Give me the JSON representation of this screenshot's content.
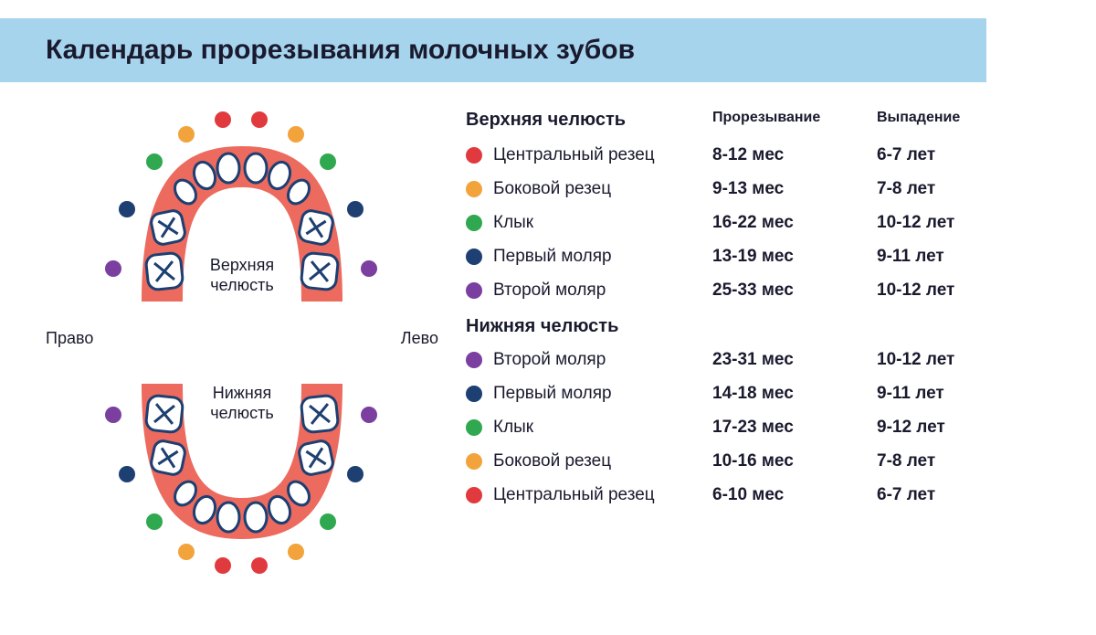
{
  "title": "Календарь прорезывания молочных зубов",
  "headers": {
    "eruption": "Прорезывание",
    "falling": "Выпадение"
  },
  "upper": {
    "title": "Верхняя челюсть",
    "rows": [
      {
        "color": "#e13a3e",
        "name": "Центральный резец",
        "erupt": "8-12 мес",
        "fall": "6-7 лет"
      },
      {
        "color": "#f2a33c",
        "name": "Боковой резец",
        "erupt": "9-13 мес",
        "fall": "7-8 лет"
      },
      {
        "color": "#2fa84f",
        "name": "Клык",
        "erupt": "16-22 мес",
        "fall": "10-12 лет"
      },
      {
        "color": "#1d3f72",
        "name": "Первый моляр",
        "erupt": "13-19 мес",
        "fall": "9-11 лет"
      },
      {
        "color": "#7b3fa0",
        "name": "Второй моляр",
        "erupt": "25-33 мес",
        "fall": "10-12 лет"
      }
    ]
  },
  "lower": {
    "title": "Нижняя челюсть",
    "rows": [
      {
        "color": "#7b3fa0",
        "name": "Второй моляр",
        "erupt": "23-31 мес",
        "fall": "10-12 лет"
      },
      {
        "color": "#1d3f72",
        "name": "Первый моляр",
        "erupt": "14-18 мес",
        "fall": "9-11 лет"
      },
      {
        "color": "#2fa84f",
        "name": "Клык",
        "erupt": "17-23 мес",
        "fall": "9-12 лет"
      },
      {
        "color": "#f2a33c",
        "name": "Боковой резец",
        "erupt": "10-16 мес",
        "fall": "7-8 лет"
      },
      {
        "color": "#e13a3e",
        "name": "Центральный резец",
        "erupt": "6-10 мес",
        "fall": "6-7 лет"
      }
    ]
  },
  "diagram": {
    "right_label": "Право",
    "left_label": "Лево",
    "upper_label": "Верхняя\nчелюсть",
    "lower_label": "Нижняя\nчелюсть",
    "gum_color": "#ec6a5e",
    "tooth_fill": "#ffffff",
    "tooth_stroke": "#1d3f72",
    "x_stroke": "#1d3f72",
    "colors": {
      "central": "#e13a3e",
      "lateral": "#f2a33c",
      "canine": "#2fa84f",
      "molar1": "#1d3f72",
      "molar2": "#7b3fa0"
    }
  }
}
